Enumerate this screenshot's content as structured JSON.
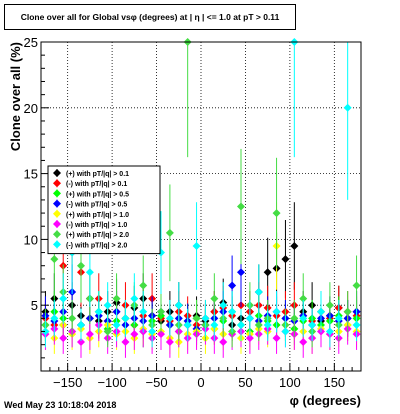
{
  "window": {
    "title": "Clone  over all for Global vsφ (degrees) at | η | <= 1.0 at pT > 0.11",
    "timestamp": "Wed May 23 10:18:04 2018"
  },
  "chart_data": {
    "type": "scatter",
    "title": "Clone  over all for Global vsφ (degrees) at | η | <= 1.0 at pT > 0.11",
    "xlabel": "φ (degrees)",
    "ylabel": "Clone  over all (%)",
    "xlim": [
      -180,
      180
    ],
    "ylim": [
      0,
      25
    ],
    "xticks": [
      -150,
      -100,
      -50,
      0,
      50,
      100,
      150
    ],
    "xtick_labels": [
      "−150",
      "−100",
      "−50",
      "0",
      "50",
      "100",
      "150"
    ],
    "yticks": [
      5,
      10,
      15,
      20,
      25
    ],
    "ytick_labels": [
      "5",
      "10",
      "15",
      "20",
      "25"
    ],
    "grid": true,
    "legend_position": "top-left",
    "series": [
      {
        "name": "(+) with pT/|q| > 0.1",
        "color": "#000000",
        "x": [
          -175,
          -165,
          -155,
          -145,
          -135,
          -125,
          -115,
          -105,
          -95,
          -85,
          -75,
          -65,
          -55,
          -45,
          -35,
          -25,
          -15,
          -5,
          5,
          15,
          25,
          35,
          45,
          55,
          65,
          75,
          85,
          95,
          105,
          115,
          125,
          135,
          145,
          155,
          165,
          175
        ],
        "y": [
          4.5,
          5.5,
          3.5,
          5.0,
          4.2,
          5.5,
          3.8,
          4.5,
          5.2,
          4.0,
          4.8,
          5.5,
          4.2,
          3.8,
          4.5,
          5.0,
          3.5,
          4.2,
          3.8,
          4.5,
          5.2,
          3.5,
          4.0,
          4.5,
          6.0,
          7.5,
          7.8,
          8.5,
          9.5,
          4.5,
          5.0,
          3.8,
          4.2,
          4.8,
          4.0,
          4.5
        ]
      },
      {
        "name": "(-) with pT/|q| > 0.1",
        "color": "#ff0000",
        "x": [
          -175,
          -165,
          -155,
          -145,
          -135,
          -125,
          -115,
          -105,
          -95,
          -85,
          -75,
          -65,
          -55,
          -45,
          -35,
          -25,
          -15,
          -5,
          5,
          15,
          25,
          35,
          45,
          55,
          65,
          75,
          85,
          95,
          105,
          115,
          125,
          135,
          145,
          155,
          165,
          175
        ],
        "y": [
          4.0,
          3.5,
          8.0,
          9.0,
          7.5,
          4.0,
          5.5,
          3.8,
          4.5,
          5.0,
          3.5,
          4.2,
          5.5,
          4.0,
          3.8,
          4.5,
          4.2,
          3.5,
          4.0,
          4.5,
          4.8,
          4.2,
          5.0,
          4.5,
          5.0,
          4.8,
          4.2,
          4.5,
          5.0,
          4.2,
          3.8,
          4.5,
          4.0,
          4.8,
          4.5,
          4.2
        ]
      },
      {
        "name": "(+) with pT/|q| > 0.5",
        "color": "#00ff00",
        "x": [
          -175,
          -165,
          -155,
          -145,
          -135,
          -125,
          -115,
          -105,
          -95,
          -85,
          -75,
          -65,
          -55,
          -45,
          -35,
          -25,
          -15,
          -5,
          5,
          15,
          25,
          35,
          45,
          55,
          65,
          75,
          85,
          95,
          105,
          115,
          125,
          135,
          145,
          155,
          165,
          175
        ],
        "y": [
          3.5,
          4.5,
          4.0,
          3.0,
          3.5,
          4.0,
          4.5,
          3.2,
          3.8,
          4.0,
          3.5,
          3.0,
          3.8,
          4.2,
          3.5,
          3.0,
          3.8,
          4.0,
          3.5,
          3.2,
          3.8,
          4.5,
          3.5,
          3.0,
          4.2,
          3.8,
          3.5,
          4.0,
          3.2,
          3.8,
          4.0,
          3.5,
          3.8,
          4.2,
          3.5,
          4.0
        ]
      },
      {
        "name": "(-) with pT/|q| > 0.5",
        "color": "#0000ff",
        "x": [
          -175,
          -165,
          -155,
          -145,
          -135,
          -125,
          -115,
          -105,
          -95,
          -85,
          -75,
          -65,
          -55,
          -45,
          -35,
          -25,
          -15,
          -5,
          5,
          15,
          25,
          35,
          45,
          55,
          65,
          75,
          85,
          95,
          105,
          115,
          125,
          135,
          145,
          155,
          165,
          175
        ],
        "y": [
          4.2,
          3.8,
          4.5,
          6.0,
          3.5,
          4.0,
          4.2,
          3.8,
          4.5,
          3.5,
          4.0,
          3.8,
          4.2,
          4.5,
          3.5,
          4.0,
          3.8,
          3.2,
          3.5,
          4.0,
          4.5,
          6.5,
          7.5,
          4.0,
          3.8,
          4.2,
          4.5,
          4.0,
          3.8,
          4.2,
          3.5,
          4.0,
          4.2,
          3.8,
          4.0,
          4.5
        ]
      },
      {
        "name": "(+) with pT/|q| > 1.0",
        "color": "#ffff00",
        "x": [
          -175,
          -165,
          -155,
          -145,
          -135,
          -125,
          -115,
          -105,
          -95,
          -85,
          -75,
          -65,
          -55,
          -45,
          -35,
          -25,
          -15,
          -5,
          5,
          15,
          25,
          35,
          45,
          55,
          65,
          75,
          85,
          95,
          105,
          115,
          125,
          135,
          145,
          155,
          165,
          175
        ],
        "y": [
          3.0,
          2.5,
          3.5,
          2.8,
          3.2,
          2.5,
          3.0,
          3.5,
          2.8,
          3.0,
          2.5,
          3.2,
          2.8,
          3.0,
          2.5,
          2.2,
          2.8,
          3.0,
          2.5,
          3.2,
          2.8,
          3.0,
          2.5,
          2.8,
          3.2,
          3.0,
          9.5,
          3.5,
          2.8,
          3.0,
          2.5,
          3.2,
          2.8,
          3.0,
          3.5,
          3.0
        ]
      },
      {
        "name": "(-) with pT/|q| > 1.0",
        "color": "#ff00ff",
        "x": [
          -175,
          -165,
          -155,
          -145,
          -135,
          -125,
          -115,
          -105,
          -95,
          -85,
          -75,
          -65,
          -55,
          -45,
          -35,
          -25,
          -15,
          -5,
          5,
          15,
          25,
          35,
          45,
          55,
          65,
          75,
          85,
          95,
          105,
          115,
          125,
          135,
          145,
          155,
          165,
          175
        ],
        "y": [
          2.8,
          3.2,
          2.5,
          3.0,
          2.2,
          2.8,
          3.5,
          2.5,
          3.0,
          2.2,
          2.8,
          3.0,
          2.5,
          2.8,
          2.2,
          3.0,
          2.5,
          2.8,
          3.2,
          2.5,
          2.2,
          2.8,
          3.0,
          2.5,
          2.8,
          3.2,
          2.5,
          3.0,
          2.8,
          2.2,
          2.5,
          3.0,
          2.8,
          2.5,
          3.2,
          2.8
        ]
      },
      {
        "name": "(+) with pT/|q| > 2.0",
        "color": "#44dd44",
        "x": [
          -175,
          -165,
          -155,
          -145,
          -135,
          -125,
          -115,
          -105,
          -95,
          -85,
          -75,
          -65,
          -55,
          -45,
          -35,
          -25,
          -15,
          -5,
          5,
          15,
          25,
          35,
          45,
          55,
          65,
          75,
          85,
          95,
          105,
          115,
          125,
          135,
          145,
          155,
          165,
          175
        ],
        "y": [
          3.5,
          8.5,
          6.0,
          4.0,
          8.0,
          5.5,
          4.5,
          3.0,
          5.5,
          4.0,
          5.0,
          6.5,
          3.5,
          4.5,
          10.5,
          3.5,
          25.0,
          4.0,
          3.5,
          5.5,
          4.0,
          3.0,
          12.5,
          5.0,
          3.5,
          4.0,
          12.0,
          3.5,
          4.0,
          5.5,
          3.0,
          4.5,
          5.0,
          3.5,
          4.5,
          6.5
        ]
      },
      {
        "name": "(-) with pT/|q| > 2.0",
        "color": "#00ffff",
        "x": [
          -175,
          -165,
          -155,
          -145,
          -135,
          -125,
          -115,
          -105,
          -95,
          -85,
          -75,
          -65,
          -55,
          -45,
          -35,
          -25,
          -15,
          -5,
          5,
          15,
          25,
          35,
          45,
          55,
          65,
          75,
          85,
          95,
          105,
          115,
          125,
          135,
          145,
          155,
          165,
          175
        ],
        "y": [
          3.0,
          4.0,
          5.5,
          9.0,
          3.5,
          7.5,
          4.5,
          5.0,
          3.5,
          4.0,
          5.5,
          4.5,
          3.0,
          9.0,
          4.0,
          5.0,
          3.5,
          9.5,
          4.0,
          3.5,
          5.0,
          4.5,
          3.5,
          4.0,
          6.0,
          3.5,
          4.5,
          3.0,
          25.0,
          4.0,
          3.5,
          4.5,
          3.0,
          4.0,
          20.0,
          3.5
        ]
      }
    ]
  }
}
